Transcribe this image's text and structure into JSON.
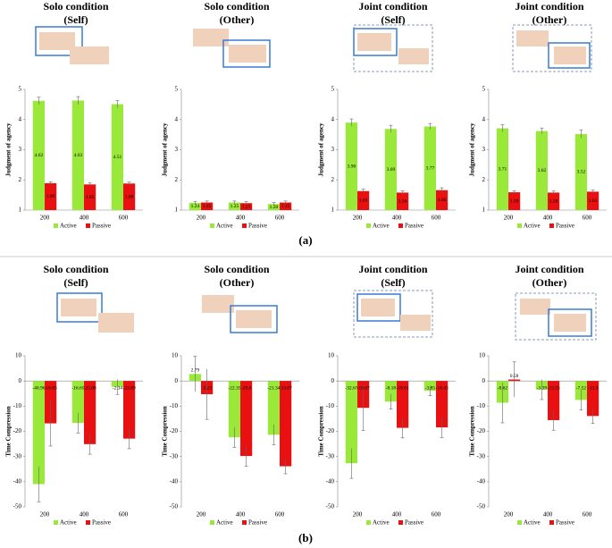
{
  "figure_labels": [
    "(a)",
    "(b)"
  ],
  "chart_data": [
    {
      "type": "bar",
      "title": "Solo condition",
      "subtitle": "(Self)",
      "y_label": "Judgment of agency",
      "categories": [
        "200",
        "400",
        "600"
      ],
      "ylim": [
        1,
        5
      ],
      "yticks": [
        1,
        2,
        3,
        4,
        5
      ],
      "series": [
        {
          "name": "Active",
          "color": "#99e83a",
          "values": [
            4.62,
            4.63,
            4.51
          ],
          "errors": [
            0.12,
            0.13,
            0.12
          ]
        },
        {
          "name": "Passive",
          "color": "#e81010",
          "values": [
            1.89,
            1.85,
            1.88
          ],
          "errors": [
            0.05,
            0.05,
            0.05
          ]
        }
      ]
    },
    {
      "type": "bar",
      "title": "Solo condition",
      "subtitle": "(Other)",
      "y_label": "Judgment of agency",
      "categories": [
        "200",
        "400",
        "600"
      ],
      "ylim": [
        1,
        5
      ],
      "yticks": [
        1,
        2,
        3,
        4,
        5
      ],
      "series": [
        {
          "name": "Active",
          "color": "#99e83a",
          "values": [
            1.24,
            1.25,
            1.2
          ],
          "value_labels": [
            "1.24",
            "1.25",
            "1.20"
          ],
          "errors": [
            0.05,
            0.05,
            0.05
          ]
        },
        {
          "name": "Passive",
          "color": "#e81010",
          "values": [
            1.25,
            1.23,
            1.25
          ],
          "errors": [
            0.05,
            0.05,
            0.05
          ]
        }
      ]
    },
    {
      "type": "bar",
      "title": "Joint condition",
      "subtitle": "(Self)",
      "y_label": "Judgment of agency",
      "categories": [
        "200",
        "400",
        "600"
      ],
      "ylim": [
        1,
        5
      ],
      "yticks": [
        1,
        2,
        3,
        4,
        5
      ],
      "series": [
        {
          "name": "Active",
          "color": "#99e83a",
          "values": [
            3.9,
            3.69,
            3.77
          ],
          "value_labels": [
            "3.90",
            "3.69",
            "3.77"
          ],
          "errors": [
            0.12,
            0.12,
            0.1
          ]
        },
        {
          "name": "Passive",
          "color": "#e81010",
          "values": [
            1.63,
            1.58,
            1.66
          ],
          "errors": [
            0.06,
            0.06,
            0.08
          ]
        }
      ]
    },
    {
      "type": "bar",
      "title": "Joint condition",
      "subtitle": "(Other)",
      "y_label": "Judgment of agency",
      "categories": [
        "200",
        "400",
        "600"
      ],
      "ylim": [
        1,
        5
      ],
      "yticks": [
        1,
        2,
        3,
        4,
        5
      ],
      "series": [
        {
          "name": "Active",
          "color": "#99e83a",
          "values": [
            3.71,
            3.62,
            3.52
          ],
          "errors": [
            0.12,
            0.1,
            0.14
          ]
        },
        {
          "name": "Passive",
          "color": "#e81010",
          "values": [
            1.59,
            1.58,
            1.61
          ],
          "errors": [
            0.05,
            0.05,
            0.05
          ]
        }
      ]
    },
    {
      "type": "bar",
      "title": "Solo condition",
      "subtitle": "(Self)",
      "y_label": "Time Compression",
      "categories": [
        "200",
        "400",
        "600"
      ],
      "ylim": [
        -50,
        10
      ],
      "yticks": [
        -50,
        -40,
        -30,
        -20,
        -10,
        0,
        10
      ],
      "series": [
        {
          "name": "Active",
          "color": "#99e83a",
          "values": [
            -40.96,
            -16.65,
            -2.34
          ],
          "errors": [
            7,
            4,
            3
          ]
        },
        {
          "name": "Passive",
          "color": "#e81010",
          "values": [
            -16.83,
            -25.08,
            -22.89
          ],
          "errors": [
            9,
            4,
            4
          ]
        }
      ]
    },
    {
      "type": "bar",
      "title": "Solo condition",
      "subtitle": "(Other)",
      "y_label": "Time Compression",
      "categories": [
        "200",
        "400",
        "600"
      ],
      "ylim": [
        -50,
        10
      ],
      "yticks": [
        -50,
        -40,
        -30,
        -20,
        -10,
        0,
        10
      ],
      "series": [
        {
          "name": "Active",
          "color": "#99e83a",
          "values": [
            2.79,
            -22.35,
            -21.34
          ],
          "errors": [
            7,
            4,
            4
          ]
        },
        {
          "name": "Passive",
          "color": "#e81010",
          "values": [
            -5.25,
            -29.8,
            -33.87
          ],
          "errors": [
            10,
            4,
            3
          ]
        }
      ]
    },
    {
      "type": "bar",
      "title": "Joint condition",
      "subtitle": "(Self)",
      "y_label": "Time Compression",
      "categories": [
        "200",
        "400",
        "600"
      ],
      "ylim": [
        -50,
        10
      ],
      "yticks": [
        -50,
        -40,
        -30,
        -20,
        -10,
        0,
        10
      ],
      "series": [
        {
          "name": "Active",
          "color": "#99e83a",
          "values": [
            -32.67,
            -8.18,
            -3.85
          ],
          "errors": [
            6,
            3,
            2
          ]
        },
        {
          "name": "Passive",
          "color": "#e81010",
          "values": [
            -10.67,
            -18.61,
            -18.43
          ],
          "errors": [
            9,
            4,
            4
          ]
        }
      ]
    },
    {
      "type": "bar",
      "title": "Joint condition",
      "subtitle": "(Other)",
      "y_label": "Time Compression",
      "categories": [
        "200",
        "400",
        "600"
      ],
      "ylim": [
        -50,
        10
      ],
      "yticks": [
        -50,
        -40,
        -30,
        -20,
        -10,
        0,
        10
      ],
      "series": [
        {
          "name": "Active",
          "color": "#99e83a",
          "values": [
            -8.62,
            -3.39,
            -7.52
          ],
          "errors": [
            8,
            4,
            4
          ]
        },
        {
          "name": "Passive",
          "color": "#e81010",
          "values": [
            0.58,
            -15.55,
            -13.9
          ],
          "errors": [
            7,
            4,
            3
          ]
        }
      ]
    }
  ]
}
